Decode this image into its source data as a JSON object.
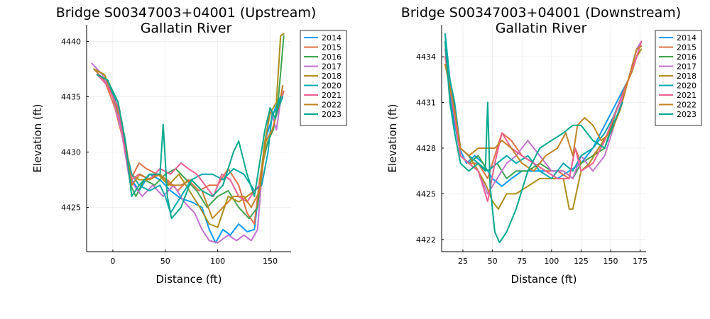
{
  "chart_data": [
    {
      "type": "line",
      "title": [
        "Bridge S00347003+04001 (Upstream)",
        "Gallatin River"
      ],
      "xlabel": "Distance (ft)",
      "ylabel": "Elevation (ft)",
      "xlim": [
        -25,
        170
      ],
      "ylim": [
        4421,
        4441.5
      ],
      "xticks": [
        0,
        50,
        100,
        150
      ],
      "yticks": [
        4425,
        4430,
        4435,
        4440
      ],
      "grid": true,
      "legend_position": "top-right",
      "series": [
        {
          "name": "2014",
          "color": "#009AFA",
          "x": [
            -15,
            -5,
            5,
            12,
            18,
            25,
            35,
            45,
            55,
            65,
            75,
            85,
            92,
            98,
            105,
            112,
            120,
            128,
            135,
            140,
            145,
            150,
            155,
            160
          ],
          "y": [
            4437,
            4436.5,
            4434,
            4430,
            4427.5,
            4426.5,
            4428,
            4427.5,
            4426.5,
            4425.8,
            4425.5,
            4425,
            4423,
            4421.8,
            4423,
            4422.5,
            4423.5,
            4422.8,
            4423,
            4427,
            4431,
            4432.5,
            4434,
            4435
          ]
        },
        {
          "name": "2015",
          "color": "#E36F47",
          "x": [
            -18,
            -8,
            2,
            10,
            17,
            25,
            32,
            42,
            52,
            62,
            72,
            82,
            92,
            100,
            110,
            120,
            128,
            135,
            140,
            146,
            152,
            158,
            163
          ],
          "y": [
            4437.5,
            4436.5,
            4434,
            4431,
            4427.5,
            4429,
            4428.5,
            4428,
            4427.5,
            4426.5,
            4427.5,
            4426.5,
            4427,
            4427,
            4428.5,
            4427,
            4424.5,
            4423.5,
            4427.5,
            4431,
            4432,
            4434,
            4435.5
          ]
        },
        {
          "name": "2016",
          "color": "#3EA44E",
          "x": [
            -18,
            -8,
            3,
            10,
            17,
            22,
            30,
            40,
            50,
            60,
            70,
            80,
            90,
            100,
            110,
            120,
            130,
            138,
            143,
            148,
            153,
            158,
            163
          ],
          "y": [
            4437.5,
            4437,
            4434.5,
            4431,
            4427,
            4426,
            4427.5,
            4427,
            4428,
            4428.5,
            4427.5,
            4426.5,
            4425,
            4426,
            4426.5,
            4425,
            4424,
            4425,
            4429,
            4431,
            4432,
            4435,
            4440.5
          ]
        },
        {
          "name": "2017",
          "color": "#C271D2",
          "x": [
            -20,
            -10,
            0,
            8,
            15,
            20,
            28,
            38,
            48,
            58,
            68,
            78,
            85,
            92,
            100,
            110,
            118,
            125,
            132,
            138,
            144,
            150,
            156,
            162
          ],
          "y": [
            4438,
            4437,
            4435,
            4432,
            4428,
            4427,
            4426,
            4427,
            4426,
            4427,
            4425.5,
            4424.5,
            4423,
            4422,
            4421.8,
            4422.5,
            4422,
            4422.5,
            4422,
            4423,
            4430,
            4434,
            4432,
            4436
          ]
        },
        {
          "name": "2018",
          "color": "#AC8D18",
          "x": [
            -18,
            -8,
            2,
            10,
            17,
            25,
            33,
            43,
            53,
            63,
            73,
            83,
            92,
            100,
            110,
            120,
            128,
            135,
            140,
            145,
            150,
            156,
            160,
            163
          ],
          "y": [
            4437.5,
            4437,
            4434.5,
            4432,
            4428,
            4427.5,
            4427.5,
            4428,
            4427,
            4428,
            4426.5,
            4425,
            4423.5,
            4423.2,
            4426,
            4425.5,
            4426,
            4426.5,
            4427,
            4431,
            4433.5,
            4434.5,
            4440.5,
            4440.7
          ]
        },
        {
          "name": "2020",
          "color": "#00A9AD",
          "x": [
            -15,
            -5,
            5,
            12,
            18,
            25,
            35,
            45,
            50,
            55,
            65,
            75,
            85,
            95,
            105,
            115,
            125,
            135,
            142,
            148,
            152,
            158,
            162
          ],
          "y": [
            4437,
            4436.5,
            4434,
            4430.5,
            4428,
            4427,
            4426.5,
            4427,
            4426,
            4424.5,
            4426,
            4427.5,
            4428,
            4428,
            4427.5,
            4428.5,
            4428,
            4426.5,
            4427,
            4430,
            4433.5,
            4434,
            4435
          ]
        },
        {
          "name": "2021",
          "color": "#ED5E93",
          "x": [
            -15,
            -5,
            5,
            12,
            18,
            25,
            35,
            45,
            55,
            65,
            72,
            80,
            88,
            96,
            104,
            112,
            120,
            128,
            135,
            140
          ],
          "y": [
            4437,
            4436,
            4434,
            4430,
            4427.5,
            4428,
            4427.5,
            4428.5,
            4428,
            4429,
            4428.5,
            4428,
            4427,
            4426,
            4428,
            4427.5,
            4426,
            4425.5,
            4426.5,
            4427
          ]
        },
        {
          "name": "2022",
          "color": "#C68225",
          "x": [
            -15,
            -5,
            5,
            12,
            18,
            26,
            35,
            45,
            55,
            65,
            75,
            85,
            95,
            105,
            115,
            125,
            132,
            140,
            146,
            152,
            158,
            162
          ],
          "y": [
            4437,
            4436.5,
            4434.5,
            4431,
            4427,
            4428,
            4427.5,
            4428,
            4427,
            4427,
            4427.5,
            4426.5,
            4424,
            4425,
            4426,
            4426,
            4425,
            4426.5,
            4431,
            4432,
            4434,
            4436
          ]
        },
        {
          "name": "2023",
          "color": "#00A98D",
          "x": [
            -15,
            -5,
            5,
            12,
            18,
            25,
            35,
            45,
            48,
            52,
            56,
            65,
            75,
            85,
            95,
            105,
            115,
            120,
            128,
            135,
            140,
            145,
            150,
            155,
            160
          ],
          "y": [
            4437,
            4436.5,
            4434.5,
            4431,
            4426,
            4427,
            4428,
            4428,
            4432.5,
            4426,
            4424,
            4425,
            4427.5,
            4426.5,
            4426,
            4427,
            4430,
            4431,
            4428,
            4426,
            4429,
            4432,
            4434,
            4433,
            4435
          ]
        }
      ]
    },
    {
      "type": "line",
      "title": [
        "Bridge S00347003+04001 (Downstream)",
        "Gallatin River"
      ],
      "xlabel": "Distance (ft)",
      "ylabel": "Elevation (ft)",
      "xlim": [
        7,
        180
      ],
      "ylim": [
        4421.2,
        4436.1
      ],
      "xticks": [
        25,
        50,
        75,
        100,
        125,
        150,
        175
      ],
      "yticks": [
        4422,
        4425,
        4428,
        4431,
        4434
      ],
      "grid": true,
      "legend_position": "top-right",
      "series": [
        {
          "name": "2014",
          "color": "#009AFA",
          "x": [
            10,
            13,
            17,
            22,
            28,
            35,
            42,
            50,
            58,
            66,
            75,
            85,
            95,
            105,
            115,
            125,
            135,
            145,
            155,
            165,
            172,
            176
          ],
          "y": [
            4435.5,
            4432,
            4430,
            4428,
            4427,
            4427.5,
            4427,
            4426,
            4425.5,
            4426,
            4426.5,
            4426.5,
            4426.5,
            4426,
            4426.5,
            4427,
            4428,
            4429.5,
            4431,
            4432.5,
            4434.5,
            4435
          ]
        },
        {
          "name": "2015",
          "color": "#E36F47",
          "x": [
            10,
            14,
            18,
            23,
            30,
            38,
            46,
            52,
            58,
            66,
            75,
            85,
            95,
            105,
            115,
            120,
            125,
            135,
            145,
            155,
            165,
            172,
            176
          ],
          "y": [
            4434.5,
            4432,
            4430.5,
            4427.5,
            4427,
            4427,
            4426,
            4427.5,
            4429,
            4428.5,
            4427.5,
            4427,
            4426.5,
            4426.5,
            4426,
            4428,
            4427,
            4427.5,
            4428.5,
            4430.5,
            4432.5,
            4434,
            4435
          ]
        },
        {
          "name": "2016",
          "color": "#3EA44E",
          "x": [
            10,
            14,
            18,
            23,
            30,
            38,
            46,
            54,
            62,
            70,
            80,
            90,
            100,
            110,
            118,
            125,
            135,
            145,
            155,
            165,
            172,
            176
          ],
          "y": [
            4434,
            4432.5,
            4430.5,
            4427.5,
            4427,
            4427.5,
            4426.5,
            4427,
            4426,
            4426.5,
            4426.5,
            4427,
            4426.5,
            4426.5,
            4426,
            4427,
            4427.5,
            4428,
            4430.5,
            4432.5,
            4434.5,
            4435
          ]
        },
        {
          "name": "2017",
          "color": "#C271D2",
          "x": [
            10,
            14,
            18,
            23,
            30,
            38,
            46,
            54,
            62,
            70,
            80,
            90,
            100,
            110,
            118,
            125,
            135,
            145,
            155,
            165,
            172,
            176
          ],
          "y": [
            4434.5,
            4432,
            4430,
            4427.5,
            4427,
            4426.5,
            4425,
            4426,
            4427,
            4427.5,
            4428.5,
            4427.5,
            4426.5,
            4426.5,
            4426,
            4427.5,
            4426.5,
            4427.5,
            4430,
            4432.5,
            4434.5,
            4435
          ]
        },
        {
          "name": "2018",
          "color": "#AC8D18",
          "x": [
            10,
            14,
            18,
            23,
            30,
            38,
            45,
            50,
            55,
            62,
            70,
            80,
            90,
            100,
            110,
            115,
            118,
            125,
            132,
            140,
            148,
            155,
            162,
            168,
            172,
            176
          ],
          "y": [
            4433.5,
            4432,
            4430,
            4428,
            4427.5,
            4426.5,
            4425.5,
            4424.5,
            4424,
            4425,
            4425,
            4425.5,
            4426,
            4426,
            4426,
            4424,
            4424,
            4426.5,
            4427,
            4428,
            4429,
            4430.5,
            4432,
            4433,
            4434,
            4434.5
          ]
        },
        {
          "name": "2020",
          "color": "#00A9AD",
          "x": [
            10,
            14,
            18,
            23,
            30,
            38,
            46,
            54,
            62,
            70,
            80,
            90,
            100,
            110,
            118,
            125,
            135,
            145,
            152,
            160
          ],
          "y": [
            4435.5,
            4432.5,
            4431,
            4428,
            4427.5,
            4427,
            4426.5,
            4427,
            4427.5,
            4427,
            4427.5,
            4426.5,
            4426,
            4427,
            4426.5,
            4427.5,
            4428,
            4429,
            4430,
            4431.5
          ]
        },
        {
          "name": "2021",
          "color": "#ED5E93",
          "x": [
            10,
            14,
            18,
            23,
            30,
            38,
            46,
            52,
            58,
            66,
            75,
            85,
            95,
            105,
            115,
            120,
            125,
            135,
            145,
            155,
            165,
            172,
            176
          ],
          "y": [
            4434,
            4432,
            4430,
            4427.5,
            4427,
            4426.5,
            4424.5,
            4427,
            4429,
            4428,
            4427.5,
            4427,
            4426.5,
            4426,
            4426,
            4428,
            4426.5,
            4427,
            4428.5,
            4430.5,
            4432.5,
            4434,
            4435
          ]
        },
        {
          "name": "2022",
          "color": "#C68225",
          "x": [
            10,
            14,
            18,
            23,
            30,
            38,
            45,
            52,
            58,
            66,
            75,
            85,
            95,
            105,
            112,
            118,
            122,
            128,
            135,
            142,
            150,
            158,
            165,
            172,
            176
          ],
          "y": [
            4433.5,
            4432,
            4430.5,
            4428,
            4427.5,
            4428,
            4428,
            4428,
            4428.5,
            4428,
            4427,
            4426.5,
            4427.5,
            4428,
            4429,
            4427.5,
            4429.5,
            4430,
            4429.5,
            4428.5,
            4429,
            4430.5,
            4432.5,
            4434.5,
            4434.7
          ]
        },
        {
          "name": "2023",
          "color": "#00A98D",
          "x": [
            10,
            14,
            18,
            23,
            30,
            38,
            44,
            46,
            48,
            52,
            56,
            62,
            70,
            80,
            90,
            100,
            110,
            118,
            125,
            135,
            145,
            152,
            160
          ],
          "y": [
            4435,
            4431,
            4429,
            4427,
            4426.5,
            4427,
            4426.5,
            4431,
            4425.5,
            4422.5,
            4421.8,
            4422.5,
            4424,
            4426.5,
            4428,
            4428.5,
            4429,
            4429.5,
            4429.5,
            4428.5,
            4428,
            4429.5,
            4431
          ]
        }
      ]
    }
  ]
}
